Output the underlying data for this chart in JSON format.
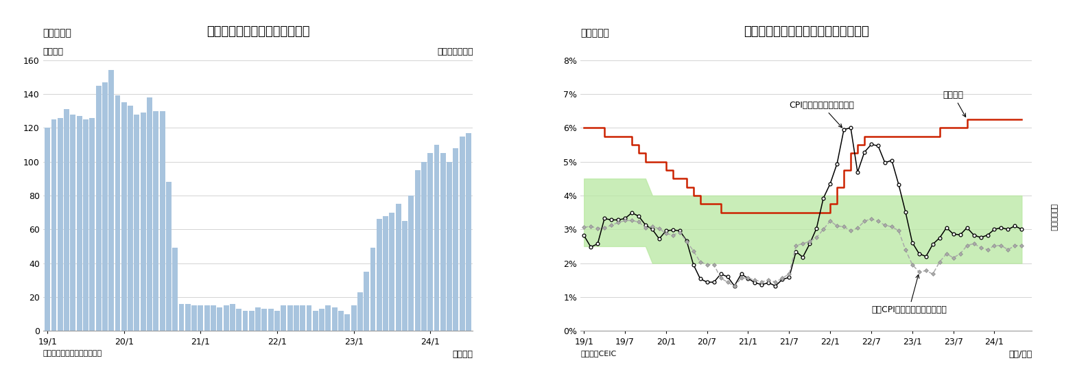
{
  "chart3_title": "インドネシアの外国人観光客数",
  "chart3_subtitle_left": "（図表３）",
  "chart3_ylabel": "（万人）",
  "chart3_note_right": "（前年同月比）",
  "chart3_source": "（資料）インドネシア統計局",
  "chart3_xlabel": "（月次）",
  "chart3_ylim": [
    0,
    160
  ],
  "chart3_yticks": [
    0,
    20,
    40,
    60,
    80,
    100,
    120,
    140,
    160
  ],
  "chart3_xtick_labels": [
    "19/1",
    "20/1",
    "21/1",
    "22/1",
    "23/1",
    "24/1"
  ],
  "chart3_bar_color": "#a8c4de",
  "chart3_values": [
    120,
    125,
    126,
    131,
    128,
    127,
    125,
    126,
    145,
    147,
    154,
    139,
    135,
    133,
    128,
    129,
    138,
    130,
    130,
    88,
    49,
    16,
    16,
    15,
    15,
    15,
    15,
    14,
    15,
    16,
    13,
    12,
    12,
    14,
    13,
    13,
    12,
    15,
    15,
    15,
    15,
    15,
    12,
    13,
    15,
    14,
    12,
    10,
    15,
    23,
    35,
    49,
    66,
    68,
    70,
    75,
    65,
    80,
    95,
    100,
    105,
    110,
    105,
    100,
    108,
    115,
    117
  ],
  "chart4_title": "インドネシアのインフレ率と政策金利",
  "chart4_subtitle_left": "（図表４）",
  "chart4_source": "（資料）CEIC",
  "chart4_xlabel": "（年/月）",
  "chart4_ylim": [
    0,
    8
  ],
  "chart4_ytick_labels": [
    "0%",
    "1%",
    "2%",
    "3%",
    "4%",
    "5%",
    "6%",
    "7%",
    "8%"
  ],
  "chart4_xtick_labels": [
    "19/1",
    "19/7",
    "20/1",
    "20/7",
    "21/1",
    "21/7",
    "22/1",
    "22/7",
    "23/1",
    "23/7",
    "24/1"
  ],
  "chart4_policy_rate": [
    6.0,
    6.0,
    6.0,
    5.75,
    5.75,
    5.75,
    5.75,
    5.5,
    5.25,
    5.0,
    5.0,
    5.0,
    4.75,
    4.5,
    4.5,
    4.25,
    4.0,
    3.75,
    3.75,
    3.75,
    3.5,
    3.5,
    3.5,
    3.5,
    3.5,
    3.5,
    3.5,
    3.5,
    3.5,
    3.5,
    3.5,
    3.5,
    3.5,
    3.5,
    3.5,
    3.5,
    3.75,
    4.25,
    4.75,
    5.25,
    5.5,
    5.75,
    5.75,
    5.75,
    5.75,
    5.75,
    5.75,
    5.75,
    5.75,
    5.75,
    5.75,
    5.75,
    6.0,
    6.0,
    6.0,
    6.0,
    6.25,
    6.25,
    6.25,
    6.25,
    6.25,
    6.25,
    6.25,
    6.25,
    6.25
  ],
  "chart4_cpi": [
    2.82,
    2.48,
    2.57,
    3.32,
    3.28,
    3.28,
    3.32,
    3.49,
    3.39,
    3.13,
    3.0,
    2.72,
    2.96,
    2.98,
    2.96,
    2.67,
    1.96,
    1.54,
    1.44,
    1.44,
    1.68,
    1.6,
    1.33,
    1.68,
    1.55,
    1.42,
    1.37,
    1.42,
    1.33,
    1.52,
    1.58,
    2.34,
    2.18,
    2.57,
    3.03,
    3.92,
    4.35,
    4.94,
    5.95,
    6.0,
    4.69,
    5.28,
    5.51,
    5.47,
    4.97,
    5.04,
    4.33,
    3.52,
    2.61,
    2.28,
    2.2,
    2.56,
    2.75,
    3.05,
    2.86,
    2.84,
    3.05,
    2.83,
    2.76,
    2.83,
    3.0,
    3.05,
    3.0,
    3.1,
    3.0
  ],
  "chart4_core_cpi": [
    3.06,
    3.09,
    3.03,
    3.05,
    3.12,
    3.2,
    3.26,
    3.26,
    3.22,
    3.05,
    3.08,
    3.02,
    2.88,
    2.83,
    2.91,
    2.65,
    2.36,
    2.04,
    1.96,
    1.96,
    1.56,
    1.44,
    1.32,
    1.56,
    1.56,
    1.5,
    1.45,
    1.5,
    1.44,
    1.56,
    1.68,
    2.52,
    2.58,
    2.64,
    2.76,
    3.0,
    3.25,
    3.1,
    3.08,
    2.96,
    3.04,
    3.24,
    3.31,
    3.24,
    3.12,
    3.08,
    2.96,
    2.4,
    1.96,
    1.74,
    1.78,
    1.68,
    2.04,
    2.28,
    2.16,
    2.28,
    2.52,
    2.58,
    2.46,
    2.4,
    2.52,
    2.52,
    2.4,
    2.52,
    2.52
  ],
  "chart4_n_months": 65,
  "chart4_label_policy": "政策金利",
  "chart4_label_cpi": "CPI上昇率（前年同月比）",
  "chart4_label_core_cpi": "コアCPI上昇率（前年同月比）",
  "chart4_label_infre": "インフレ目標"
}
